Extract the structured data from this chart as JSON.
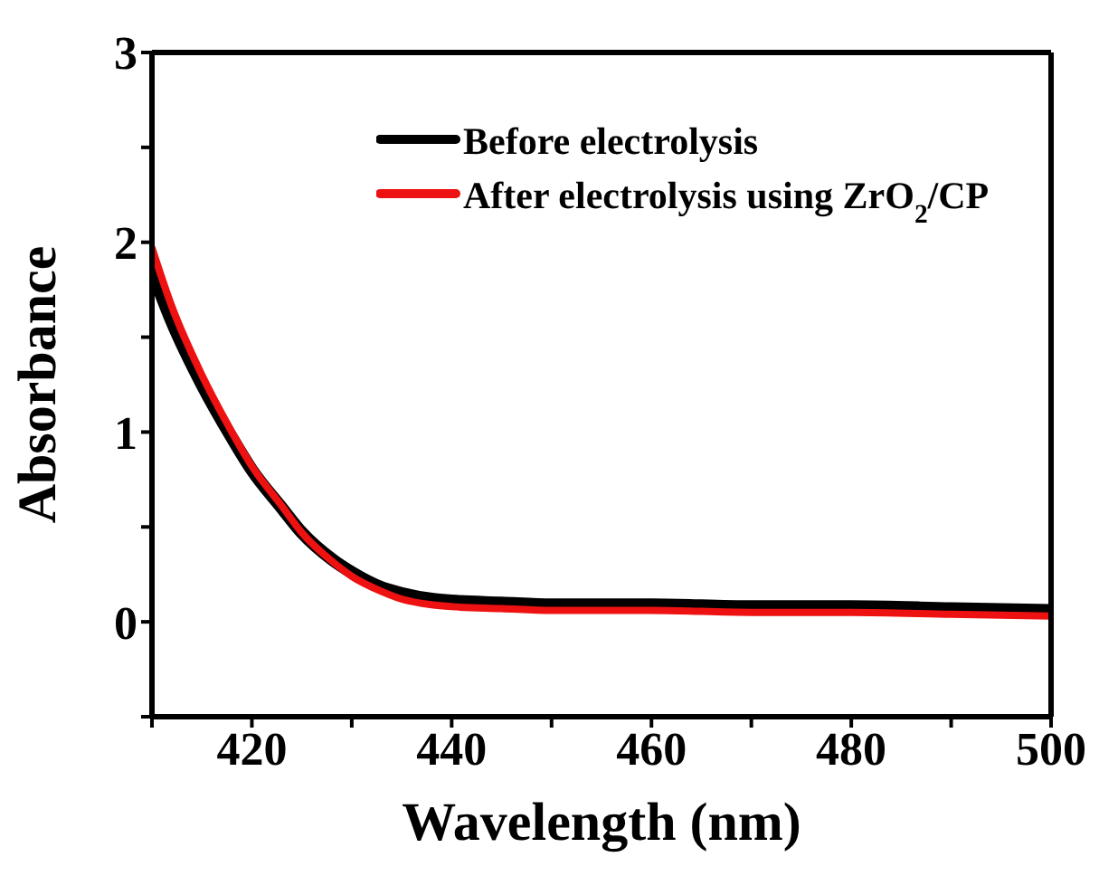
{
  "chart_data": {
    "type": "line",
    "xlabel": "Wavelength (nm)",
    "ylabel": "Absorbance",
    "xlim": [
      410,
      500
    ],
    "ylim": [
      -0.5,
      3
    ],
    "xticks": [
      {
        "value": 410,
        "label": null
      },
      420,
      {
        "value": 430,
        "label": null
      },
      440,
      {
        "value": 450,
        "label": null
      },
      460,
      {
        "value": 470,
        "label": null
      },
      480,
      {
        "value": 490,
        "label": null
      },
      500
    ],
    "yticks": [
      {
        "value": -0.5,
        "label": null
      },
      0,
      {
        "value": 0.5,
        "label": null
      },
      1,
      {
        "value": 1.5,
        "label": null
      },
      2,
      {
        "value": 2.5,
        "label": null
      },
      3
    ],
    "x": [
      410,
      412,
      415,
      418,
      420,
      423,
      425,
      428,
      430,
      433,
      435,
      438,
      440,
      445,
      450,
      460,
      470,
      480,
      490,
      500
    ],
    "series": [
      {
        "name": "Before electrolysis",
        "color": "#000000",
        "values": [
          1.85,
          1.58,
          1.25,
          0.97,
          0.8,
          0.6,
          0.47,
          0.33,
          0.26,
          0.18,
          0.15,
          0.12,
          0.11,
          0.1,
          0.09,
          0.09,
          0.08,
          0.08,
          0.07,
          0.06
        ]
      },
      {
        "name": "After electrolysis using ZrO$_{2}$/CP",
        "color": "#ee1111",
        "values": [
          1.97,
          1.66,
          1.3,
          1.0,
          0.82,
          0.61,
          0.47,
          0.32,
          0.24,
          0.16,
          0.12,
          0.09,
          0.08,
          0.07,
          0.06,
          0.06,
          0.05,
          0.05,
          0.04,
          0.03
        ]
      }
    ],
    "legend": "top",
    "grid": false,
    "marker": "none",
    "line_style": "solid"
  }
}
